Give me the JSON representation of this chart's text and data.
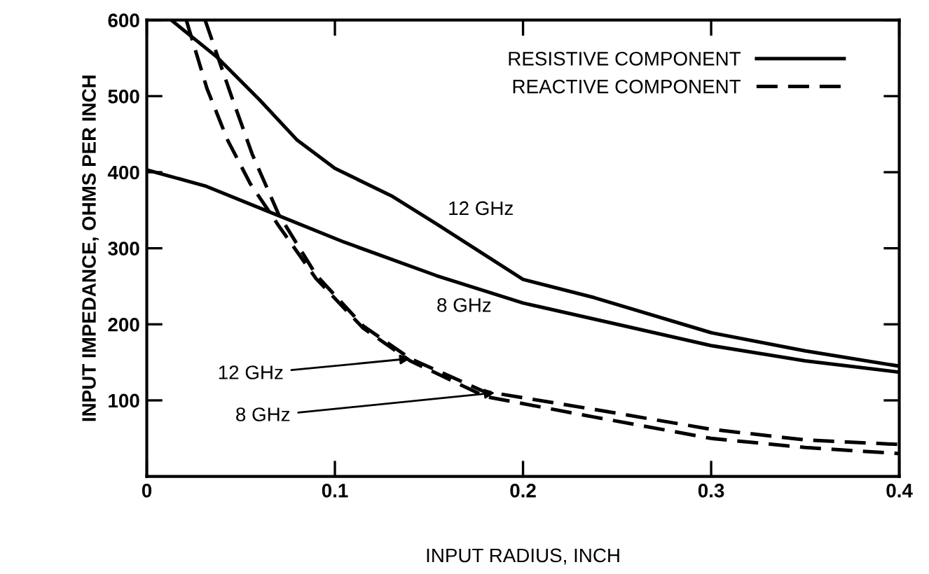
{
  "chart_data": {
    "type": "line",
    "xlabel": "INPUT RADIUS, INCH",
    "ylabel": "INPUT IMPEDANCE, OHMS PER INCH",
    "xlim": [
      0,
      0.4
    ],
    "xticks": [
      0,
      0.1,
      0.2,
      0.3,
      0.4
    ],
    "ylim": [
      0,
      600
    ],
    "yticks": [
      100,
      200,
      300,
      400,
      500,
      600
    ],
    "grid": false,
    "legend": "top right",
    "marker": "none",
    "series": [
      {
        "name": "RESISTIVE COMPONENT",
        "color": "#000000",
        "line_style": "solid",
        "x": [
          0.013,
          0.037,
          0.06,
          0.08,
          0.1,
          0.13,
          0.154,
          0.2,
          0.238,
          0.3,
          0.35,
          0.4
        ],
        "values": [
          600,
          552,
          495,
          442,
          405,
          369,
          332,
          259,
          235,
          189,
          165,
          145
        ]
      },
      {
        "color": "#000000",
        "line_style": "solid",
        "x": [
          0,
          0.031,
          0.063,
          0.105,
          0.154,
          0.2,
          0.25,
          0.3,
          0.35,
          0.4
        ],
        "values": [
          403,
          382,
          350,
          308,
          264,
          228,
          200,
          172,
          152,
          137
        ]
      },
      {
        "name": "REACTIVE COMPONENT",
        "color": "#000000",
        "line_style": "dashed",
        "x": [
          0.031,
          0.045,
          0.056,
          0.07,
          0.09,
          0.115,
          0.14,
          0.179,
          0.238,
          0.3,
          0.35,
          0.4
        ],
        "values": [
          600,
          500,
          424,
          345,
          265,
          198,
          155,
          112,
          88,
          62,
          48,
          42
        ]
      },
      {
        "color": "#000000",
        "line_style": "dashed",
        "x": [
          0.021,
          0.032,
          0.043,
          0.055,
          0.07,
          0.09,
          0.115,
          0.14,
          0.18,
          0.238,
          0.3,
          0.35,
          0.4
        ],
        "values": [
          600,
          510,
          442,
          385,
          330,
          260,
          195,
          152,
          105,
          78,
          50,
          38,
          30
        ]
      }
    ],
    "annotations": [
      {
        "text": "12 GHz",
        "x": 0.16,
        "y": 330
      },
      {
        "text": "8 GHz",
        "x": 0.154,
        "y": 264
      },
      {
        "text": "12 GHz",
        "x": 0.14,
        "y": 155
      },
      {
        "text": "8 GHz",
        "x": 0.185,
        "y": 110
      }
    ]
  }
}
